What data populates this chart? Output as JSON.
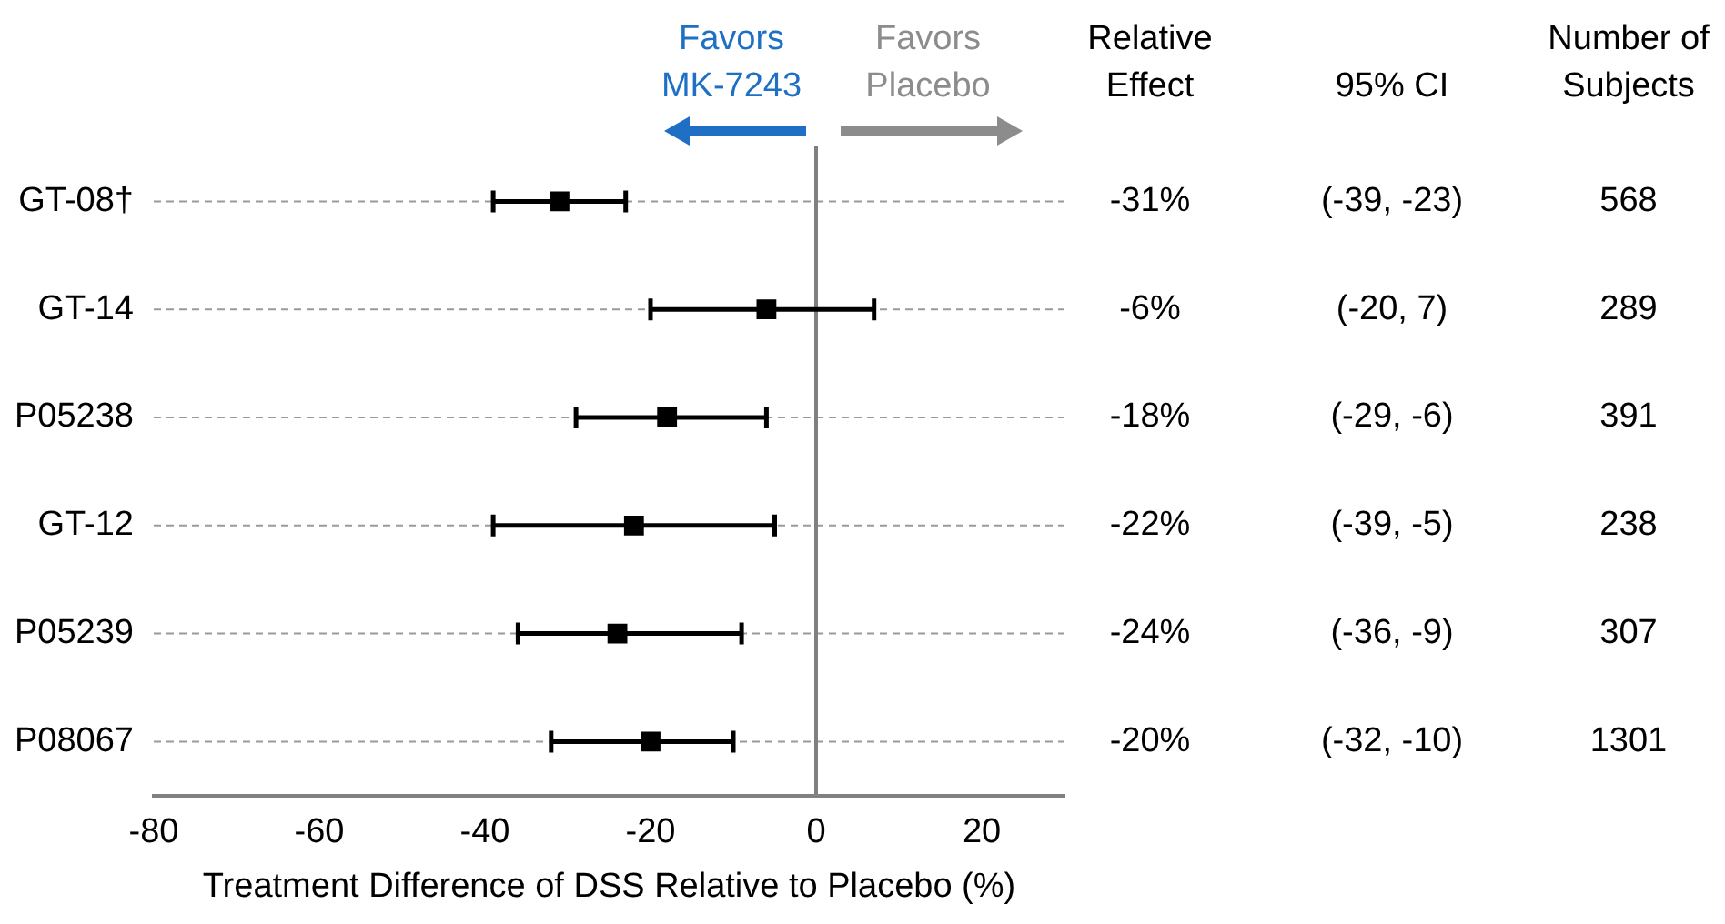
{
  "chart_data": {
    "type": "scatter",
    "orientation": "horizontal",
    "categories": [
      "GT-08†",
      "GT-14",
      "P05238",
      "GT-12",
      "P05239",
      "P08067"
    ],
    "values": [
      -31,
      -6,
      -18,
      -22,
      -24,
      -20
    ],
    "errors": [
      [
        -39,
        -23
      ],
      [
        -20,
        7
      ],
      [
        -29,
        -6
      ],
      [
        -39,
        -5
      ],
      [
        -36,
        -9
      ],
      [
        -32,
        -10
      ]
    ],
    "value_labels": [
      "-31%",
      "-6%",
      "-18%",
      "-22%",
      "-24%",
      "-20%"
    ],
    "color": "#000000",
    "marker": "square",
    "xlim": [
      -80,
      30
    ],
    "xticks": [
      -80,
      -60,
      -40,
      -20,
      0,
      20
    ],
    "xlabel": "Treatment Difference of DSS Relative to Placebo (%)",
    "grid": "y",
    "legend": false,
    "ref_lines": [
      {
        "axis": "x",
        "value": 0,
        "color": "#808080"
      }
    ],
    "annotations": [
      "Favors MK-7243",
      "Favors Placebo",
      "Relative Effect",
      "95% CI",
      "Number of Subjects",
      "(-39, -23)",
      "(-20, 7)",
      "(-29, -6)",
      "(-39, -5)",
      "(-36, -9)",
      "(-32, -10)",
      "568",
      "289",
      "391",
      "238",
      "307",
      "1301"
    ]
  }
}
